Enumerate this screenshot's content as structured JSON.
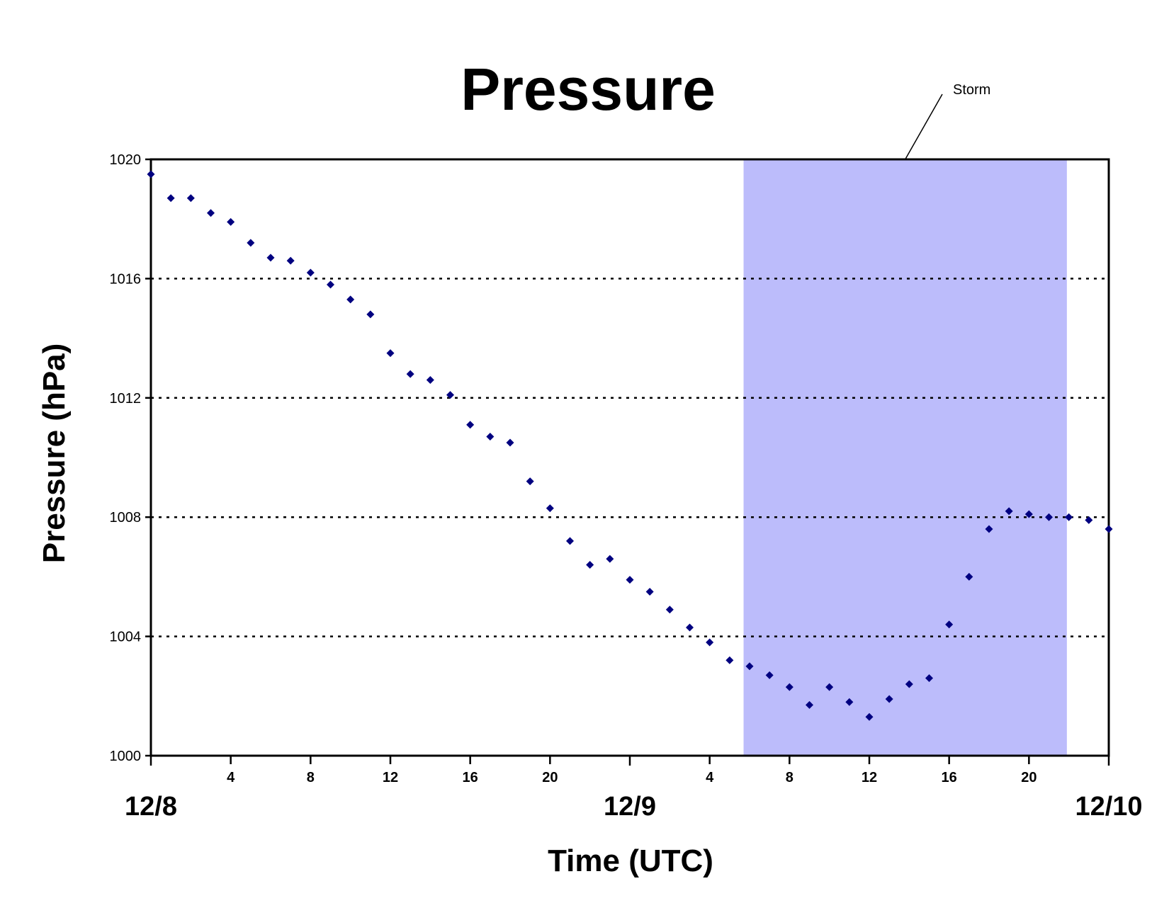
{
  "chart_data": {
    "type": "scatter",
    "title": "Pressure",
    "xlabel": "Time (UTC)",
    "ylabel": "Pressure (hPa)",
    "ylim": [
      1000,
      1020
    ],
    "yticks": [
      "1000",
      "1004",
      "1008",
      "1012",
      "1016",
      "1020"
    ],
    "grid": "horizontal dotted",
    "x_unit": "hours since 12/8 00 UTC",
    "xlim": [
      0,
      48
    ],
    "hour_tick_labels": [
      {
        "hour": 4,
        "label": "4"
      },
      {
        "hour": 8,
        "label": "8"
      },
      {
        "hour": 12,
        "label": "12"
      },
      {
        "hour": 16,
        "label": "16"
      },
      {
        "hour": 20,
        "label": "20"
      },
      {
        "hour": 28,
        "label": "4"
      },
      {
        "hour": 32,
        "label": "8"
      },
      {
        "hour": 36,
        "label": "12"
      },
      {
        "hour": 40,
        "label": "16"
      },
      {
        "hour": 44,
        "label": "20"
      }
    ],
    "date_labels": [
      {
        "hour": 0,
        "label": "12/8"
      },
      {
        "hour": 24,
        "label": "12/9"
      },
      {
        "hour": 48,
        "label": "12/10"
      }
    ],
    "highlight": {
      "label": "Storm",
      "x_start": 29.7,
      "x_end": 45.9,
      "color": "#bcbcfb"
    },
    "marker_color": "#000080",
    "series": [
      {
        "x": [
          0,
          1,
          2,
          3,
          4,
          5,
          6,
          7,
          8,
          9,
          10,
          11,
          12,
          13,
          14,
          15,
          16,
          17,
          18,
          19,
          20,
          21,
          22,
          23,
          24,
          25,
          26,
          27,
          28,
          29,
          30,
          31,
          32,
          33,
          34,
          35,
          36,
          37,
          38,
          39,
          40,
          41,
          42,
          43,
          44,
          45,
          46,
          47,
          48
        ],
        "y": [
          1019.5,
          1018.7,
          1018.7,
          1018.2,
          1017.9,
          1017.2,
          1016.7,
          1016.6,
          1016.2,
          1015.8,
          1015.3,
          1014.8,
          1013.5,
          1012.8,
          1012.6,
          1012.1,
          1011.1,
          1010.7,
          1010.5,
          1009.2,
          1008.3,
          1007.2,
          1006.4,
          1006.6,
          1005.9,
          1005.5,
          1004.9,
          1004.3,
          1003.8,
          1003.2,
          1003.0,
          1002.7,
          1002.3,
          1001.7,
          1002.3,
          1001.8,
          1001.3,
          1001.9,
          1002.4,
          1002.6,
          1004.4,
          1006.0,
          1007.6,
          1008.2,
          1008.1,
          1008.0,
          1008.0,
          1007.9,
          1007.6
        ]
      }
    ]
  }
}
